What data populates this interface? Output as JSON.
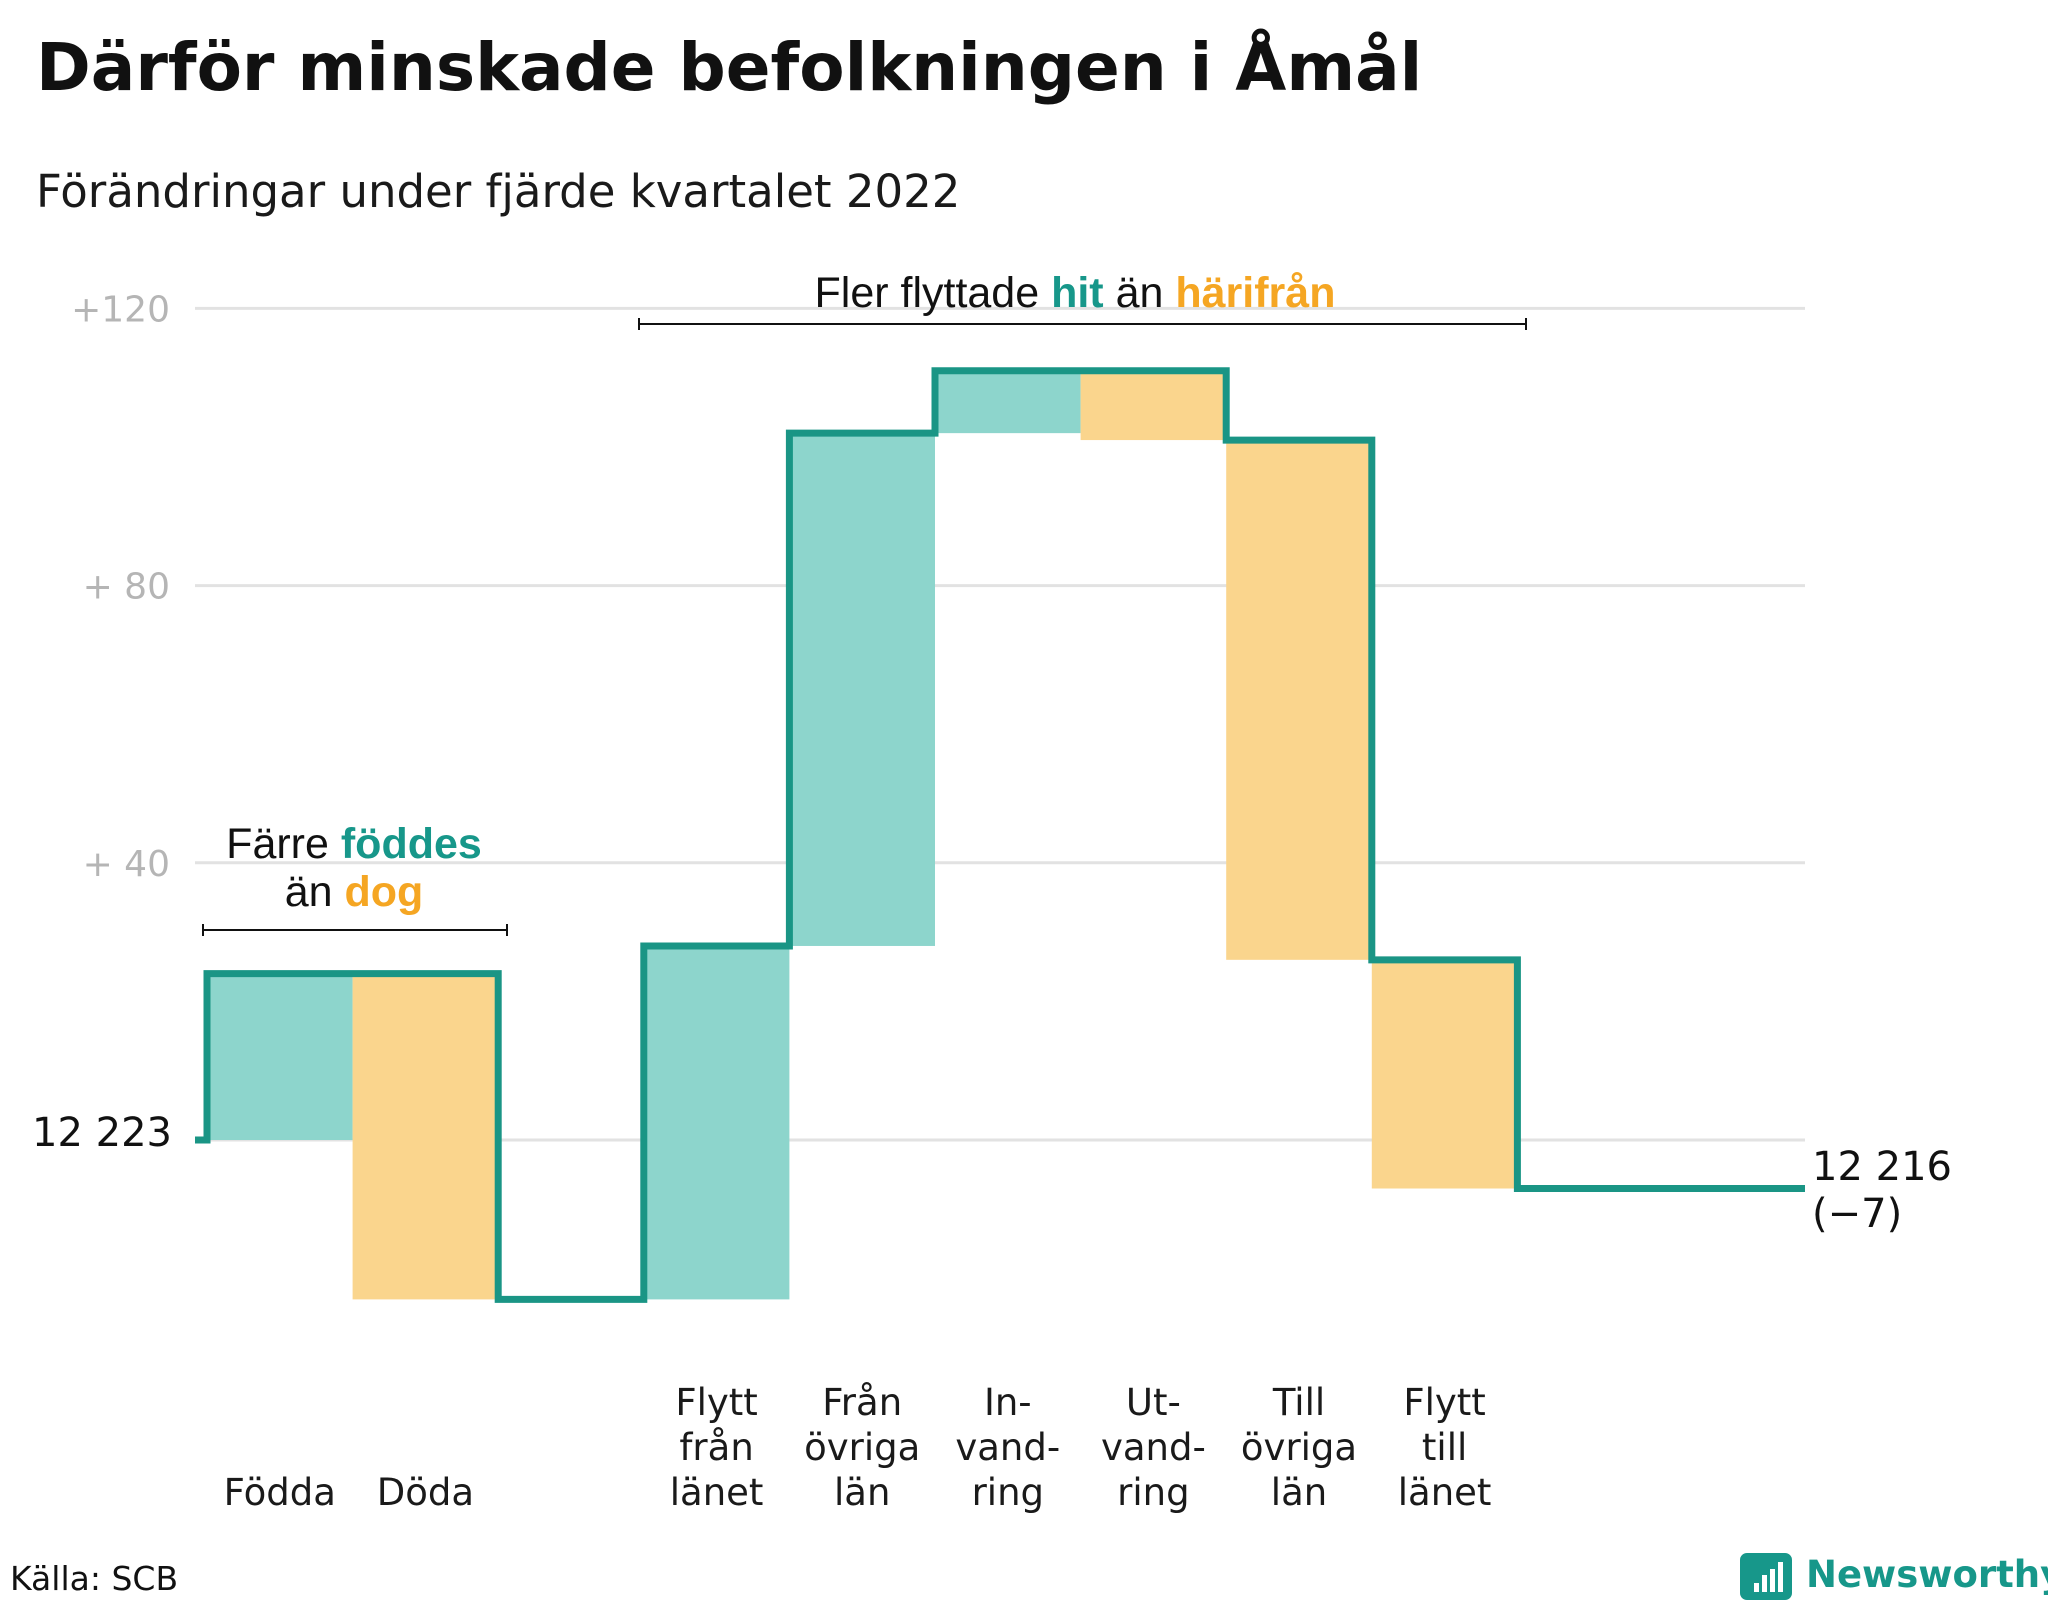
{
  "header": {
    "title": "Därför minskade befolkningen i Åmål",
    "subtitle": "Förändringar under fjärde kvartalet 2022"
  },
  "colors": {
    "increase_fill": "#8dd5cc",
    "decrease_fill": "#fad58d",
    "step_line": "#1a9585",
    "teal_text": "#17978a",
    "orange_text": "#f5a623",
    "gridline": "#e2e2e2",
    "tick_text": "#b5b5b5"
  },
  "chart_data": {
    "type": "waterfall",
    "start": {
      "label": "12 223",
      "value": 0
    },
    "end": {
      "label": "12 216",
      "change_label": "(−7)",
      "value": -7
    },
    "yticks": [
      "+120",
      "+ 80",
      "+ 40"
    ],
    "ytick_values": [
      120,
      80,
      40
    ],
    "ylim": [
      -26,
      125
    ],
    "steps": [
      {
        "category": [
          "Födda"
        ],
        "delta": 24,
        "direction": "increase"
      },
      {
        "category": [
          "Döda"
        ],
        "delta": -47,
        "direction": "decrease"
      },
      {
        "category": [],
        "delta": 0,
        "direction": "gap"
      },
      {
        "category": [
          "Flytt",
          "från",
          "länet"
        ],
        "delta": 51,
        "direction": "increase"
      },
      {
        "category": [
          "Från",
          "övriga",
          "län"
        ],
        "delta": 74,
        "direction": "increase"
      },
      {
        "category": [
          "In-",
          "vand-",
          "ring"
        ],
        "delta": 9,
        "direction": "increase"
      },
      {
        "category": [
          "Ut-",
          "vand-",
          "ring"
        ],
        "delta": -10,
        "direction": "decrease"
      },
      {
        "category": [
          "Till",
          "övriga",
          "län"
        ],
        "delta": -75,
        "direction": "decrease"
      },
      {
        "category": [
          "Flytt",
          "till",
          "länet"
        ],
        "delta": -33,
        "direction": "decrease"
      },
      {
        "category": [],
        "delta": 0,
        "direction": "gap"
      }
    ],
    "annotations": [
      {
        "lines": [
          [
            {
              "text": "Färre ",
              "style": "plain"
            },
            {
              "text": "föddes",
              "style": "teal"
            }
          ],
          [
            {
              "text": "än ",
              "style": "plain"
            },
            {
              "text": "dog",
              "style": "orange"
            }
          ]
        ]
      },
      {
        "lines": [
          [
            {
              "text": "Fler flyttade ",
              "style": "plain"
            },
            {
              "text": "hit",
              "style": "teal"
            },
            {
              "text": " än ",
              "style": "plain"
            },
            {
              "text": "härifrån",
              "style": "orange"
            }
          ]
        ]
      }
    ]
  },
  "footer": {
    "source": "Källa: SCB",
    "brand": "Newsworthy"
  }
}
